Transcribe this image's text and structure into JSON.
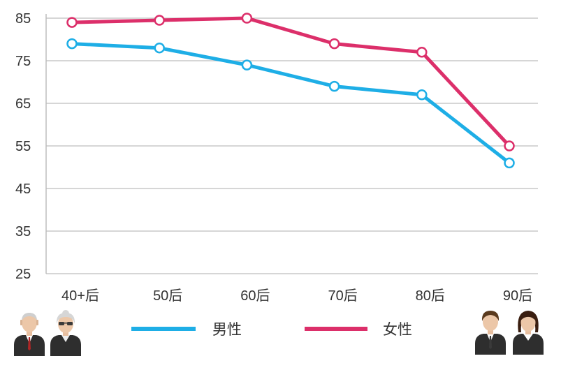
{
  "chart_data": {
    "type": "line",
    "categories": [
      "40+后",
      "50后",
      "60后",
      "70后",
      "80后",
      "90后"
    ],
    "series": [
      {
        "name": "男性",
        "values": [
          79,
          78,
          74,
          69,
          67,
          51
        ],
        "color": "#1eaee6"
      },
      {
        "name": "女性",
        "values": [
          84,
          84.5,
          85,
          79,
          77,
          55
        ],
        "color": "#dc2f6a"
      }
    ],
    "yticks": [
      25,
      35,
      45,
      55,
      65,
      75,
      85
    ],
    "ylim": [
      25,
      85
    ],
    "grid": true,
    "legend_position": "bottom"
  },
  "icons": {
    "left": [
      "elderly-man-icon",
      "elderly-woman-icon"
    ],
    "right": [
      "young-man-icon",
      "young-woman-icon"
    ]
  }
}
